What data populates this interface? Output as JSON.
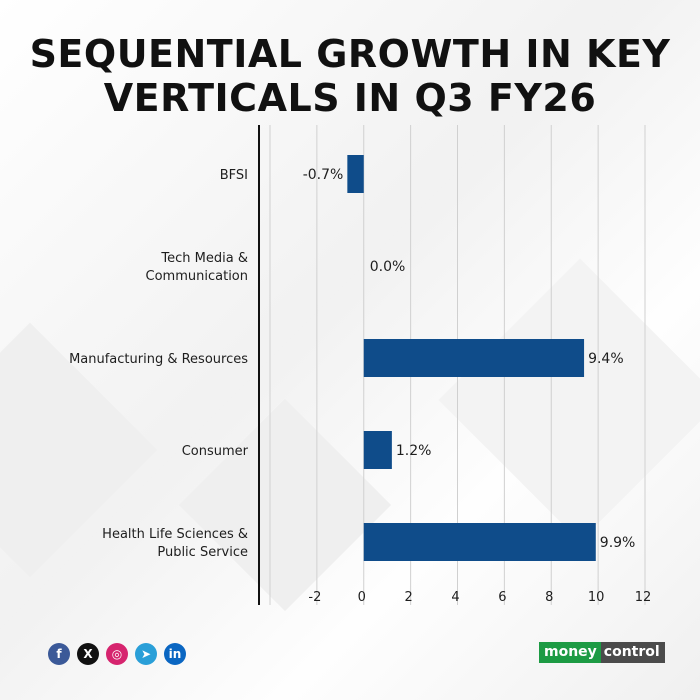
{
  "title_lines": [
    "SEQUENTIAL GROWTH IN KEY",
    "VERTICALS IN Q3 FY26"
  ],
  "chart_data": {
    "type": "bar",
    "orientation": "horizontal",
    "title": "SEQUENTIAL GROWTH IN KEY VERTICALS IN Q3 FY26",
    "categories": [
      [
        "BFSI"
      ],
      [
        "Tech Media &",
        "Communication"
      ],
      [
        "Manufacturing & Resources"
      ],
      [
        "Consumer"
      ],
      [
        "Health Life Sciences &",
        "Public Service"
      ]
    ],
    "values": [
      -0.7,
      0.0,
      9.4,
      1.2,
      9.9
    ],
    "data_labels": [
      "-0.7%",
      "0.0%",
      "9.4%",
      "1.2%",
      "9.9%"
    ],
    "xlim": [
      -4,
      12
    ],
    "xticks": [
      -2,
      0,
      2,
      4,
      6,
      8,
      10,
      12
    ],
    "grid": true,
    "bar_color": "#0f4c8a"
  },
  "social_icons": [
    "facebook-icon",
    "x-icon",
    "instagram-icon",
    "telegram-icon",
    "linkedin-icon"
  ],
  "social_glyphs": [
    "f",
    "X",
    "◎",
    "➤",
    "in"
  ],
  "brand": {
    "part1": "money",
    "part2": "control"
  },
  "colors": {
    "facebook": "#3b5998",
    "x": "#111111",
    "instagram": "#d6246e",
    "telegram": "#2a9fd8",
    "linkedin": "#0a66c2"
  }
}
